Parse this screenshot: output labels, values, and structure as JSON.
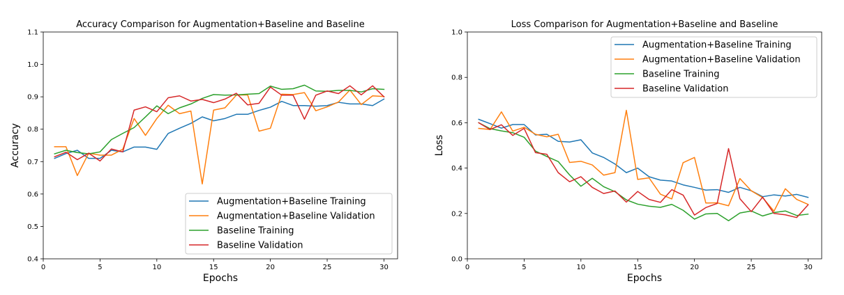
{
  "chart_data": [
    {
      "type": "line",
      "title": "Accuracy Comparison for Augmentation+Baseline and Baseline",
      "xlabel": "Epochs",
      "ylabel": "Accuracy",
      "xlim": [
        0,
        31.2
      ],
      "ylim": [
        0.4,
        1.1
      ],
      "xticks": [
        0,
        5,
        10,
        15,
        20,
        25,
        30
      ],
      "yticks": [
        0.4,
        0.5,
        0.6,
        0.7,
        0.8,
        0.9,
        1.0,
        1.1
      ],
      "ytick_labels": [
        "0.4",
        "0.5",
        "0.6",
        "0.7",
        "0.8",
        "0.9",
        "1.0",
        "1.1"
      ],
      "grid": false,
      "legend_position": "lower-right",
      "x": [
        1,
        2,
        3,
        4,
        5,
        6,
        7,
        8,
        9,
        10,
        11,
        12,
        13,
        14,
        15,
        16,
        17,
        18,
        19,
        20,
        21,
        22,
        23,
        24,
        25,
        26,
        27,
        28,
        29,
        30
      ],
      "series": [
        {
          "name": "Augmentation+Baseline Training",
          "color": "#1f77b4",
          "values": [
            0.71,
            0.725,
            0.735,
            0.71,
            0.71,
            0.735,
            0.73,
            0.745,
            0.745,
            0.738,
            0.787,
            0.803,
            0.818,
            0.838,
            0.826,
            0.833,
            0.846,
            0.846,
            0.858,
            0.868,
            0.886,
            0.873,
            0.873,
            0.871,
            0.873,
            0.883,
            0.878,
            0.878,
            0.873,
            0.893
          ]
        },
        {
          "name": "Augmentation+Baseline Validation",
          "color": "#ff7f0e",
          "values": [
            0.746,
            0.746,
            0.657,
            0.726,
            0.72,
            0.72,
            0.738,
            0.833,
            0.781,
            0.833,
            0.874,
            0.848,
            0.856,
            0.631,
            0.859,
            0.866,
            0.905,
            0.906,
            0.794,
            0.803,
            0.908,
            0.907,
            0.913,
            0.857,
            0.869,
            0.884,
            0.921,
            0.876,
            0.903,
            0.901
          ]
        },
        {
          "name": "Baseline Training",
          "color": "#2ca02c",
          "values": [
            0.724,
            0.735,
            0.728,
            0.724,
            0.73,
            0.768,
            0.787,
            0.805,
            0.838,
            0.872,
            0.848,
            0.866,
            0.878,
            0.895,
            0.907,
            0.905,
            0.906,
            0.908,
            0.91,
            0.933,
            0.923,
            0.925,
            0.936,
            0.918,
            0.917,
            0.92,
            0.92,
            0.915,
            0.925,
            0.923
          ]
        },
        {
          "name": "Baseline Validation",
          "color": "#d62728",
          "values": [
            0.715,
            0.729,
            0.706,
            0.726,
            0.702,
            0.739,
            0.73,
            0.859,
            0.869,
            0.854,
            0.897,
            0.903,
            0.887,
            0.892,
            0.882,
            0.893,
            0.911,
            0.875,
            0.88,
            0.93,
            0.905,
            0.905,
            0.831,
            0.905,
            0.918,
            0.91,
            0.934,
            0.906,
            0.934,
            0.9
          ]
        }
      ]
    },
    {
      "type": "line",
      "title": "Loss Comparison for Augmentation+Baseline and Baseline",
      "xlabel": "Epochs",
      "ylabel": "Loss",
      "xlim": [
        0,
        31.2
      ],
      "ylim": [
        0.0,
        1.0
      ],
      "xticks": [
        0,
        5,
        10,
        15,
        20,
        25,
        30
      ],
      "yticks": [
        0.0,
        0.2,
        0.4,
        0.6,
        0.8,
        1.0
      ],
      "ytick_labels": [
        "0.0",
        "0.2",
        "0.4",
        "0.6",
        "0.8",
        "1.0"
      ],
      "grid": false,
      "legend_position": "upper-right",
      "x": [
        1,
        2,
        3,
        4,
        5,
        6,
        7,
        8,
        9,
        10,
        11,
        12,
        13,
        14,
        15,
        16,
        17,
        18,
        19,
        20,
        21,
        22,
        23,
        24,
        25,
        26,
        27,
        28,
        29,
        30
      ],
      "series": [
        {
          "name": "Augmentation+Baseline Training",
          "color": "#1f77b4",
          "values": [
            0.615,
            0.596,
            0.576,
            0.592,
            0.592,
            0.546,
            0.549,
            0.518,
            0.515,
            0.525,
            0.467,
            0.447,
            0.418,
            0.38,
            0.4,
            0.362,
            0.347,
            0.343,
            0.326,
            0.315,
            0.303,
            0.305,
            0.293,
            0.315,
            0.3,
            0.274,
            0.282,
            0.277,
            0.284,
            0.271
          ]
        },
        {
          "name": "Augmentation+Baseline Validation",
          "color": "#ff7f0e",
          "values": [
            0.575,
            0.57,
            0.648,
            0.563,
            0.58,
            0.549,
            0.538,
            0.549,
            0.425,
            0.43,
            0.414,
            0.369,
            0.38,
            0.655,
            0.35,
            0.357,
            0.285,
            0.264,
            0.424,
            0.447,
            0.246,
            0.247,
            0.234,
            0.354,
            0.3,
            0.27,
            0.21,
            0.309,
            0.262,
            0.24
          ]
        },
        {
          "name": "Baseline Training",
          "color": "#2ca02c",
          "values": [
            0.6,
            0.574,
            0.564,
            0.556,
            0.536,
            0.475,
            0.451,
            0.429,
            0.37,
            0.32,
            0.355,
            0.318,
            0.296,
            0.26,
            0.241,
            0.232,
            0.227,
            0.24,
            0.214,
            0.175,
            0.198,
            0.2,
            0.168,
            0.202,
            0.211,
            0.189,
            0.204,
            0.211,
            0.191,
            0.197
          ]
        },
        {
          "name": "Baseline Validation",
          "color": "#d62728",
          "values": [
            0.6,
            0.57,
            0.591,
            0.544,
            0.575,
            0.468,
            0.461,
            0.38,
            0.34,
            0.362,
            0.315,
            0.288,
            0.299,
            0.25,
            0.297,
            0.262,
            0.249,
            0.305,
            0.281,
            0.193,
            0.226,
            0.244,
            0.486,
            0.265,
            0.208,
            0.272,
            0.2,
            0.194,
            0.182,
            0.238
          ]
        }
      ]
    }
  ]
}
